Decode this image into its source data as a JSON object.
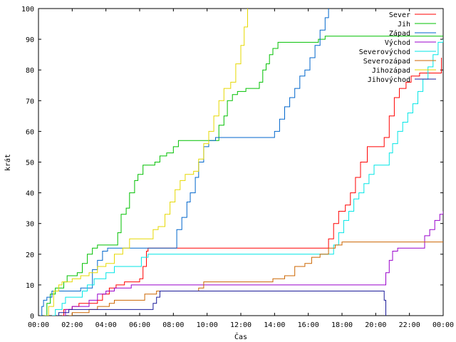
{
  "chart_data": {
    "type": "line",
    "xlabel": "Čas",
    "ylabel": "krát",
    "xlim": [
      0,
      24
    ],
    "ylim": [
      0,
      100
    ],
    "x_ticks": [
      0,
      2,
      4,
      6,
      8,
      10,
      12,
      14,
      16,
      18,
      20,
      22,
      24
    ],
    "x_tick_labels": [
      "00:00",
      "02:00",
      "04:00",
      "06:00",
      "08:00",
      "10:00",
      "12:00",
      "14:00",
      "16:00",
      "18:00",
      "20:00",
      "22:00",
      "00:00"
    ],
    "y_ticks": [
      0,
      10,
      20,
      30,
      40,
      50,
      60,
      70,
      80,
      90,
      100
    ],
    "y_tick_labels": [
      "0",
      "10",
      "20",
      "30",
      "40",
      "50",
      "60",
      "70",
      "80",
      "90",
      "100"
    ],
    "legend_position": "top-right",
    "grid": false,
    "series": [
      {
        "name": "Sever",
        "color": "#ff0000",
        "points": [
          [
            1.4,
            0
          ],
          [
            1.5,
            2
          ],
          [
            2.0,
            3
          ],
          [
            2.4,
            4
          ],
          [
            3.5,
            5
          ],
          [
            3.8,
            7
          ],
          [
            4.2,
            9
          ],
          [
            4.6,
            10
          ],
          [
            5.1,
            11
          ],
          [
            6.0,
            12
          ],
          [
            6.2,
            16
          ],
          [
            6.4,
            21
          ],
          [
            6.5,
            22
          ],
          [
            8.0,
            22
          ],
          [
            10.0,
            22
          ],
          [
            16.0,
            22
          ],
          [
            16.8,
            22
          ],
          [
            17.2,
            25
          ],
          [
            17.5,
            30
          ],
          [
            17.8,
            34
          ],
          [
            18.2,
            36
          ],
          [
            18.5,
            40
          ],
          [
            18.8,
            45
          ],
          [
            19.1,
            50
          ],
          [
            19.5,
            55
          ],
          [
            20.2,
            55
          ],
          [
            20.5,
            58
          ],
          [
            20.8,
            65
          ],
          [
            21.1,
            71
          ],
          [
            21.4,
            74
          ],
          [
            21.8,
            76
          ],
          [
            22.1,
            78
          ],
          [
            22.6,
            79
          ],
          [
            23.7,
            79
          ],
          [
            23.9,
            84
          ]
        ]
      },
      {
        "name": "Jih",
        "color": "#00c000",
        "points": [
          [
            0.3,
            0
          ],
          [
            0.5,
            4
          ],
          [
            0.7,
            7
          ],
          [
            1.0,
            9
          ],
          [
            1.5,
            11
          ],
          [
            1.7,
            13
          ],
          [
            2.3,
            14
          ],
          [
            2.6,
            17
          ],
          [
            2.9,
            20
          ],
          [
            3.2,
            22
          ],
          [
            3.5,
            23
          ],
          [
            4.5,
            23
          ],
          [
            4.7,
            27
          ],
          [
            4.9,
            33
          ],
          [
            5.2,
            35
          ],
          [
            5.4,
            40
          ],
          [
            5.7,
            44
          ],
          [
            5.9,
            46
          ],
          [
            6.2,
            49
          ],
          [
            6.9,
            50
          ],
          [
            7.2,
            52
          ],
          [
            7.6,
            53
          ],
          [
            8.0,
            55
          ],
          [
            8.3,
            57
          ],
          [
            9.0,
            57
          ],
          [
            10.4,
            57
          ],
          [
            10.7,
            62
          ],
          [
            11.0,
            65
          ],
          [
            11.2,
            70
          ],
          [
            11.5,
            72
          ],
          [
            11.8,
            73
          ],
          [
            12.3,
            74
          ],
          [
            12.9,
            74
          ],
          [
            13.1,
            76
          ],
          [
            13.3,
            80
          ],
          [
            13.5,
            82
          ],
          [
            13.7,
            85
          ],
          [
            13.9,
            87
          ],
          [
            14.2,
            89
          ],
          [
            16.3,
            89
          ],
          [
            16.6,
            90
          ],
          [
            17.0,
            91
          ],
          [
            24.0,
            91
          ]
        ]
      },
      {
        "name": "Západ",
        "color": "#0066cc",
        "points": [
          [
            0.1,
            0
          ],
          [
            0.2,
            3
          ],
          [
            0.3,
            5
          ],
          [
            0.5,
            6
          ],
          [
            0.8,
            8
          ],
          [
            2.5,
            9
          ],
          [
            3.2,
            15
          ],
          [
            3.5,
            18
          ],
          [
            3.8,
            21
          ],
          [
            4.1,
            22
          ],
          [
            8.0,
            22
          ],
          [
            8.2,
            28
          ],
          [
            8.5,
            32
          ],
          [
            8.8,
            37
          ],
          [
            9.0,
            40
          ],
          [
            9.3,
            45
          ],
          [
            9.5,
            50
          ],
          [
            9.8,
            55
          ],
          [
            10.1,
            57
          ],
          [
            10.5,
            58
          ],
          [
            13.7,
            58
          ],
          [
            14.0,
            60
          ],
          [
            14.3,
            64
          ],
          [
            14.6,
            68
          ],
          [
            14.9,
            71
          ],
          [
            15.2,
            74
          ],
          [
            15.5,
            78
          ],
          [
            15.8,
            80
          ],
          [
            16.1,
            84
          ],
          [
            16.4,
            88
          ],
          [
            16.7,
            93
          ],
          [
            17.0,
            97
          ],
          [
            17.2,
            100
          ]
        ]
      },
      {
        "name": "Východ",
        "color": "#9900cc",
        "points": [
          [
            1.5,
            0
          ],
          [
            1.6,
            2
          ],
          [
            2.0,
            3
          ],
          [
            3.0,
            5
          ],
          [
            3.5,
            7
          ],
          [
            4.0,
            8
          ],
          [
            4.5,
            9
          ],
          [
            5.0,
            9
          ],
          [
            5.5,
            10
          ],
          [
            9.8,
            10
          ],
          [
            10.0,
            10
          ],
          [
            20.0,
            10
          ],
          [
            20.4,
            10
          ],
          [
            20.6,
            14
          ],
          [
            20.8,
            18
          ],
          [
            21.0,
            21
          ],
          [
            21.3,
            22
          ],
          [
            22.7,
            22
          ],
          [
            22.9,
            26
          ],
          [
            23.2,
            28
          ],
          [
            23.5,
            31
          ],
          [
            23.8,
            33
          ],
          [
            24.0,
            34
          ]
        ]
      },
      {
        "name": "Severovýchod",
        "color": "#00e6e6",
        "points": [
          [
            0.8,
            0
          ],
          [
            1.0,
            2
          ],
          [
            1.4,
            4
          ],
          [
            1.6,
            6
          ],
          [
            2.3,
            6
          ],
          [
            2.6,
            8
          ],
          [
            2.9,
            10
          ],
          [
            3.3,
            12
          ],
          [
            4.0,
            14
          ],
          [
            4.5,
            16
          ],
          [
            5.8,
            16
          ],
          [
            6.1,
            19
          ],
          [
            6.5,
            20
          ],
          [
            9.0,
            20
          ],
          [
            17.3,
            20
          ],
          [
            17.5,
            23
          ],
          [
            17.8,
            27
          ],
          [
            18.1,
            31
          ],
          [
            18.4,
            34
          ],
          [
            18.7,
            38
          ],
          [
            19.0,
            40
          ],
          [
            19.3,
            43
          ],
          [
            19.6,
            46
          ],
          [
            19.9,
            49
          ],
          [
            20.5,
            49
          ],
          [
            20.8,
            53
          ],
          [
            21.0,
            56
          ],
          [
            21.3,
            60
          ],
          [
            21.6,
            63
          ],
          [
            21.9,
            66
          ],
          [
            22.2,
            69
          ],
          [
            22.5,
            73
          ],
          [
            22.8,
            77
          ],
          [
            23.1,
            81
          ],
          [
            23.4,
            85
          ],
          [
            23.7,
            89
          ],
          [
            24.0,
            90
          ]
        ]
      },
      {
        "name": "Severozápad",
        "color": "#cc6600",
        "points": [
          [
            1.8,
            0
          ],
          [
            2.0,
            1
          ],
          [
            3.0,
            2
          ],
          [
            3.5,
            3
          ],
          [
            4.2,
            4
          ],
          [
            4.5,
            5
          ],
          [
            6.0,
            5
          ],
          [
            6.3,
            7
          ],
          [
            7.0,
            8
          ],
          [
            9.5,
            9
          ],
          [
            9.8,
            11
          ],
          [
            13.6,
            11
          ],
          [
            13.9,
            12
          ],
          [
            14.6,
            13
          ],
          [
            15.2,
            16
          ],
          [
            15.8,
            17
          ],
          [
            16.2,
            19
          ],
          [
            16.7,
            20
          ],
          [
            17.2,
            22
          ],
          [
            17.6,
            23
          ],
          [
            18.0,
            24
          ],
          [
            24.0,
            24
          ]
        ]
      },
      {
        "name": "Jihozápad",
        "color": "#e6d800",
        "points": [
          [
            0.4,
            0
          ],
          [
            0.6,
            3
          ],
          [
            0.9,
            8
          ],
          [
            1.2,
            10
          ],
          [
            1.4,
            11
          ],
          [
            2.0,
            12
          ],
          [
            2.5,
            13
          ],
          [
            3.0,
            14
          ],
          [
            3.5,
            16
          ],
          [
            4.0,
            17
          ],
          [
            4.5,
            20
          ],
          [
            5.0,
            22
          ],
          [
            5.4,
            25
          ],
          [
            6.6,
            25
          ],
          [
            6.8,
            28
          ],
          [
            7.1,
            29
          ],
          [
            7.5,
            33
          ],
          [
            7.8,
            37
          ],
          [
            8.1,
            41
          ],
          [
            8.4,
            44
          ],
          [
            8.7,
            46
          ],
          [
            9.2,
            47
          ],
          [
            9.5,
            51
          ],
          [
            9.8,
            56
          ],
          [
            10.1,
            60
          ],
          [
            10.4,
            65
          ],
          [
            10.7,
            70
          ],
          [
            11.0,
            74
          ],
          [
            11.4,
            76
          ],
          [
            11.7,
            82
          ],
          [
            12.0,
            88
          ],
          [
            12.2,
            94
          ],
          [
            12.4,
            100
          ]
        ]
      },
      {
        "name": "Jihovýchod",
        "color": "#1a1a99",
        "points": [
          [
            1.1,
            0
          ],
          [
            1.2,
            1
          ],
          [
            1.5,
            1
          ],
          [
            1.8,
            2
          ],
          [
            6.6,
            2
          ],
          [
            6.8,
            4
          ],
          [
            7.0,
            6
          ],
          [
            7.2,
            8
          ],
          [
            20.5,
            8
          ],
          [
            20.5,
            5
          ],
          [
            20.6,
            0
          ]
        ]
      }
    ]
  }
}
